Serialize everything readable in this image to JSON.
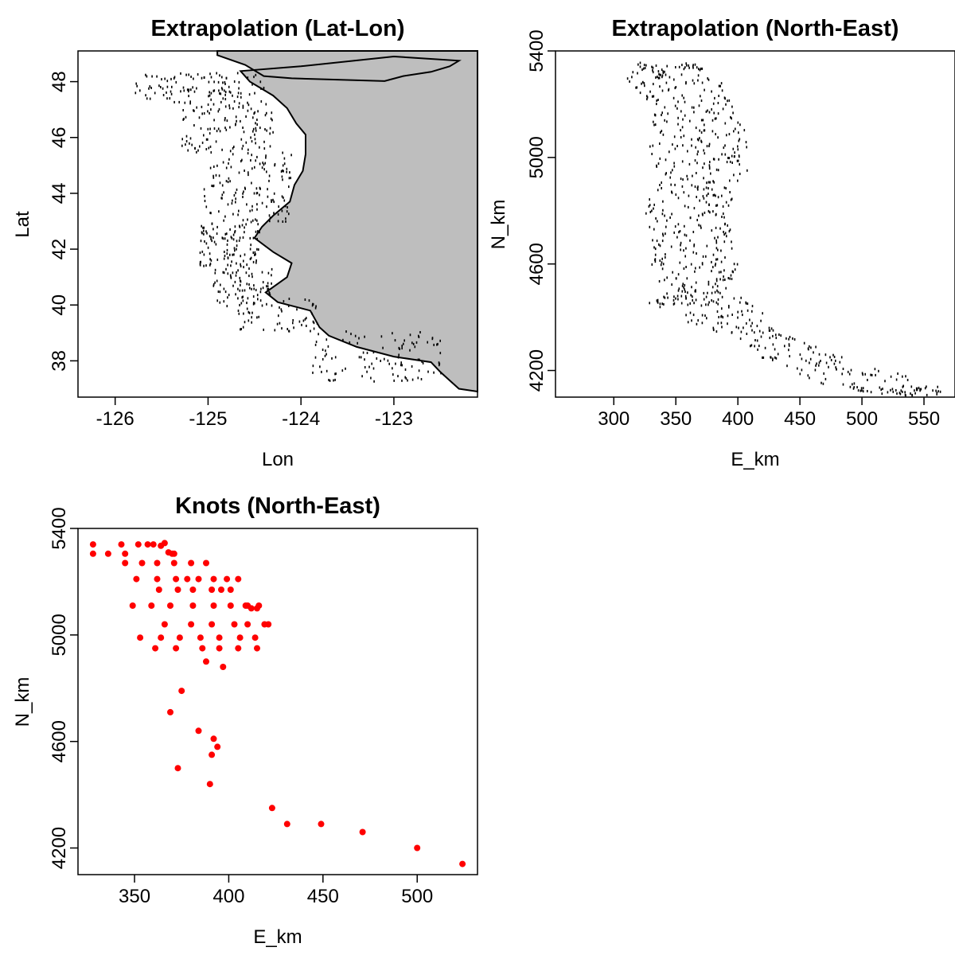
{
  "figure": {
    "background": "#ffffff",
    "land_color": "#bebebe",
    "knot_color": "#ff0000"
  },
  "chart_data": [
    {
      "type": "scatter",
      "title": "Extrapolation (Lat-Lon)",
      "xlabel": "Lon",
      "ylabel": "Lat",
      "xlim": [
        -126.4,
        -122.1
      ],
      "ylim": [
        36.7,
        49.1
      ],
      "xticks": [
        -126,
        -125,
        -124,
        -123
      ],
      "yticks": [
        38,
        40,
        42,
        44,
        46,
        48
      ],
      "grid": false,
      "has_land_polygon": true,
      "land_outline": [
        [
          -124.9,
          48.95
        ],
        [
          -124.6,
          48.6
        ],
        [
          -124.4,
          48.2
        ],
        [
          -124.1,
          48.12
        ],
        [
          -123.1,
          48.02
        ],
        [
          -122.9,
          48.2
        ],
        [
          -122.6,
          48.35
        ],
        [
          -122.4,
          48.55
        ],
        [
          -122.3,
          48.75
        ],
        [
          -123.0,
          48.9
        ],
        [
          -124.0,
          48.55
        ],
        [
          -124.65,
          48.38
        ],
        [
          -124.55,
          48.0
        ],
        [
          -124.3,
          47.5
        ],
        [
          -124.15,
          47.05
        ],
        [
          -124.05,
          46.5
        ],
        [
          -123.95,
          46.1
        ],
        [
          -123.95,
          45.4
        ],
        [
          -123.98,
          44.8
        ],
        [
          -124.07,
          44.3
        ],
        [
          -124.12,
          43.7
        ],
        [
          -124.3,
          43.2
        ],
        [
          -124.42,
          42.8
        ],
        [
          -124.5,
          42.4
        ],
        [
          -124.3,
          41.9
        ],
        [
          -124.1,
          41.5
        ],
        [
          -124.15,
          41.0
        ],
        [
          -124.38,
          40.45
        ],
        [
          -124.25,
          40.1
        ],
        [
          -123.9,
          39.8
        ],
        [
          -123.8,
          39.2
        ],
        [
          -123.7,
          38.9
        ],
        [
          -123.4,
          38.5
        ],
        [
          -123.0,
          38.15
        ],
        [
          -122.6,
          37.95
        ],
        [
          -122.5,
          37.6
        ],
        [
          -122.4,
          37.3
        ],
        [
          -122.3,
          37.0
        ],
        [
          -122.1,
          36.9
        ]
      ],
      "points": [
        {
          "lat_range": [
            47.3,
            48.35
          ],
          "lon_range": [
            -125.8,
            -124.4
          ],
          "n": 110
        },
        {
          "lat_range": [
            45.5,
            47.3
          ],
          "lon_range": [
            -125.3,
            -124.3
          ],
          "n": 120
        },
        {
          "lat_range": [
            43.0,
            45.5
          ],
          "lon_range": [
            -125.05,
            -124.1
          ],
          "n": 140
        },
        {
          "lat_range": [
            41.4,
            43.0
          ],
          "lon_range": [
            -125.1,
            -124.45
          ],
          "n": 110
        },
        {
          "lat_range": [
            40.0,
            41.4
          ],
          "lon_range": [
            -124.95,
            -124.3
          ],
          "n": 80
        },
        {
          "lat_range": [
            39.1,
            40.3
          ],
          "lon_range": [
            -124.7,
            -123.8
          ],
          "n": 60
        },
        {
          "lat_range": [
            37.3,
            39.1
          ],
          "lon_range": [
            -123.9,
            -122.5
          ],
          "n": 110
        }
      ]
    },
    {
      "type": "scatter",
      "title": "Extrapolation (North-East)",
      "xlabel": "E_km",
      "ylabel": "N_km",
      "xlim": [
        253,
        575
      ],
      "ylim": [
        4100,
        5400
      ],
      "xticks": [
        300,
        350,
        400,
        450,
        500,
        550
      ],
      "yticks": [
        4200,
        4600,
        5000,
        5400
      ],
      "grid": false,
      "shape_profile": [
        [
          5360,
          320,
          370
        ],
        [
          5300,
          310,
          385
        ],
        [
          5200,
          330,
          395
        ],
        [
          5100,
          330,
          410
        ],
        [
          5000,
          325,
          413
        ],
        [
          4900,
          330,
          400
        ],
        [
          4800,
          325,
          390
        ],
        [
          4700,
          330,
          395
        ],
        [
          4600,
          330,
          400
        ],
        [
          4500,
          340,
          390
        ],
        [
          4450,
          320,
          420
        ],
        [
          4350,
          380,
          430
        ],
        [
          4250,
          420,
          490
        ],
        [
          4150,
          470,
          560
        ],
        [
          4110,
          520,
          565
        ]
      ]
    },
    {
      "type": "scatter",
      "title": "Knots (North-East)",
      "xlabel": "E_km",
      "ylabel": "N_km",
      "xlim": [
        320,
        532
      ],
      "ylim": [
        4100,
        5400
      ],
      "xticks": [
        350,
        400,
        450,
        500
      ],
      "yticks": [
        4200,
        4600,
        5000,
        5400
      ],
      "grid": false,
      "x": [
        328,
        328,
        336,
        343,
        345,
        352,
        357,
        360,
        364,
        366,
        368,
        370,
        371,
        345,
        354,
        362,
        371,
        380,
        388,
        351,
        362,
        372,
        378,
        384,
        392,
        399,
        405,
        363,
        373,
        381,
        391,
        396,
        401,
        410,
        416,
        349,
        359,
        369,
        381,
        392,
        401,
        409,
        412,
        415,
        366,
        380,
        391,
        403,
        410,
        419,
        421,
        353,
        364,
        374,
        385,
        395,
        406,
        414,
        361,
        372,
        386,
        395,
        405,
        415,
        388,
        397,
        375,
        369,
        384,
        392,
        394,
        391,
        373,
        390,
        423,
        431,
        449,
        471,
        500,
        524
      ],
      "y": [
        5340,
        5305,
        5305,
        5340,
        5305,
        5340,
        5340,
        5340,
        5335,
        5345,
        5310,
        5305,
        5305,
        5270,
        5270,
        5270,
        5270,
        5270,
        5270,
        5210,
        5210,
        5210,
        5210,
        5210,
        5210,
        5210,
        5210,
        5170,
        5170,
        5170,
        5170,
        5170,
        5170,
        5110,
        5110,
        5110,
        5110,
        5110,
        5110,
        5110,
        5110,
        5110,
        5100,
        5100,
        5040,
        5040,
        5040,
        5040,
        5040,
        5040,
        5040,
        4990,
        4990,
        4990,
        4990,
        4990,
        4990,
        4990,
        4950,
        4950,
        4950,
        4950,
        4950,
        4950,
        4900,
        4880,
        4790,
        4710,
        4640,
        4610,
        4580,
        4550,
        4500,
        4440,
        4350,
        4290,
        4290,
        4260,
        4200,
        4140
      ]
    }
  ]
}
